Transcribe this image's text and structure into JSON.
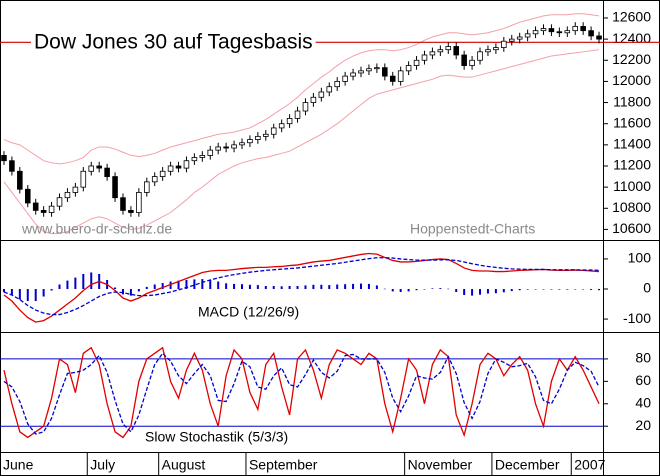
{
  "chart_data": [
    {
      "type": "candlestick",
      "title": "Dow Jones 30 auf Tagesbasis",
      "annotations": [
        "www.buero-dr-schulz.de",
        "Hoppenstedt-Charts"
      ],
      "categories": [
        "June",
        null,
        null,
        null,
        null,
        null,
        null,
        null,
        null,
        null,
        null,
        "July",
        null,
        null,
        null,
        null,
        null,
        null,
        null,
        null,
        "August",
        null,
        null,
        null,
        null,
        null,
        null,
        null,
        null,
        null,
        null,
        "September",
        null,
        null,
        null,
        null,
        null,
        null,
        null,
        null,
        null,
        null,
        null,
        null,
        null,
        null,
        null,
        null,
        null,
        null,
        null,
        "November",
        null,
        null,
        null,
        null,
        null,
        null,
        null,
        null,
        null,
        null,
        "December",
        null,
        null,
        null,
        null,
        null,
        null,
        null,
        null,
        null,
        "2007",
        null,
        null,
        null
      ],
      "open": [
        11300,
        11250,
        11150,
        10980,
        10850,
        10780,
        10760,
        10820,
        10900,
        10950,
        11000,
        11150,
        11200,
        11180,
        11100,
        10900,
        10780,
        10760,
        10950,
        11050,
        11100,
        11150,
        11200,
        11180,
        11250,
        11280,
        11300,
        11350,
        11380,
        11370,
        11400,
        11420,
        11450,
        11480,
        11500,
        11560,
        11600,
        11650,
        11720,
        11800,
        11850,
        11900,
        11950,
        12000,
        12050,
        12080,
        12100,
        12120,
        12130,
        12050,
        12000,
        12100,
        12150,
        12200,
        12250,
        12280,
        12300,
        12330,
        12250,
        12150,
        12200,
        12280,
        12300,
        12320,
        12380,
        12400,
        12420,
        12450,
        12480,
        12500,
        12470,
        12460,
        12480,
        12520,
        12480,
        12430
      ],
      "high": [
        11340,
        11290,
        11190,
        11020,
        10890,
        10820,
        10860,
        10940,
        10990,
        11040,
        11190,
        11240,
        11240,
        11220,
        11140,
        10940,
        10820,
        10990,
        11090,
        11140,
        11190,
        11240,
        11240,
        11290,
        11320,
        11340,
        11390,
        11420,
        11420,
        11440,
        11460,
        11490,
        11520,
        11540,
        11600,
        11640,
        11690,
        11760,
        11840,
        11890,
        11940,
        11990,
        12040,
        12090,
        12120,
        12140,
        12160,
        12170,
        12170,
        12090,
        12140,
        12190,
        12240,
        12290,
        12320,
        12340,
        12370,
        12370,
        12290,
        12240,
        12320,
        12340,
        12360,
        12420,
        12440,
        12460,
        12490,
        12520,
        12540,
        12540,
        12510,
        12520,
        12560,
        12560,
        12520,
        12470
      ],
      "low": [
        11210,
        11110,
        10940,
        10810,
        10740,
        10720,
        10720,
        10780,
        10860,
        10910,
        10960,
        11110,
        11140,
        11060,
        10860,
        10740,
        10720,
        10720,
        10910,
        11010,
        11060,
        11110,
        11140,
        11140,
        11210,
        11240,
        11260,
        11310,
        11330,
        11330,
        11360,
        11380,
        11410,
        11440,
        11460,
        11520,
        11560,
        11610,
        11680,
        11760,
        11810,
        11860,
        11910,
        11960,
        12010,
        12040,
        12060,
        12080,
        12010,
        11960,
        11960,
        12060,
        12110,
        12160,
        12210,
        12240,
        12260,
        12210,
        12110,
        12110,
        12160,
        12240,
        12260,
        12280,
        12340,
        12360,
        12380,
        12410,
        12440,
        12430,
        12420,
        12420,
        12440,
        12440,
        12390,
        12360
      ],
      "close": [
        11250,
        11150,
        10980,
        10850,
        10780,
        10760,
        10820,
        10900,
        10950,
        11000,
        11150,
        11200,
        11180,
        11100,
        10900,
        10780,
        10760,
        10950,
        11050,
        11100,
        11150,
        11200,
        11180,
        11250,
        11280,
        11300,
        11350,
        11380,
        11370,
        11400,
        11420,
        11450,
        11480,
        11500,
        11560,
        11600,
        11650,
        11720,
        11800,
        11850,
        11900,
        11950,
        12000,
        12050,
        12080,
        12100,
        12120,
        12130,
        12050,
        12000,
        12100,
        12150,
        12200,
        12250,
        12280,
        12300,
        12330,
        12250,
        12150,
        12200,
        12280,
        12300,
        12320,
        12380,
        12400,
        12420,
        12450,
        12480,
        12500,
        12470,
        12460,
        12480,
        12520,
        12480,
        12430,
        12400
      ],
      "color": "#000000",
      "bands": {
        "color": "#f4a0a8",
        "upper": [
          11450,
          11420,
          11400,
          11350,
          11300,
          11250,
          11230,
          11220,
          11230,
          11250,
          11280,
          11350,
          11380,
          11380,
          11360,
          11330,
          11300,
          11290,
          11300,
          11320,
          11350,
          11380,
          11400,
          11420,
          11440,
          11460,
          11480,
          11500,
          11510,
          11520,
          11540,
          11560,
          11600,
          11640,
          11690,
          11740,
          11790,
          11850,
          11920,
          11980,
          12040,
          12090,
          12150,
          12200,
          12240,
          12270,
          12290,
          12300,
          12300,
          12290,
          12300,
          12320,
          12350,
          12390,
          12420,
          12440,
          12460,
          12460,
          12450,
          12440,
          12450,
          12460,
          12480,
          12500,
          12530,
          12560,
          12580,
          12600,
          12620,
          12630,
          12630,
          12630,
          12640,
          12640,
          12630,
          12620
        ],
        "lower": [
          11050,
          10950,
          10850,
          10750,
          10650,
          10580,
          10560,
          10560,
          10580,
          10620,
          10660,
          10700,
          10720,
          10700,
          10660,
          10620,
          10600,
          10610,
          10640,
          10680,
          10720,
          10760,
          10820,
          10880,
          10950,
          11000,
          11060,
          11120,
          11160,
          11200,
          11230,
          11250,
          11270,
          11280,
          11300,
          11320,
          11340,
          11380,
          11420,
          11460,
          11500,
          11550,
          11600,
          11660,
          11720,
          11780,
          11840,
          11880,
          11900,
          11920,
          11940,
          11960,
          11980,
          12000,
          12020,
          12050,
          12060,
          12050,
          12040,
          12040,
          12060,
          12080,
          12100,
          12120,
          12140,
          12160,
          12180,
          12200,
          12220,
          12240,
          12250,
          12260,
          12270,
          12280,
          12290,
          12300
        ]
      },
      "hline": {
        "value": 12370,
        "color": "#cc0000"
      },
      "ylim": [
        10500,
        12770
      ],
      "yticks": [
        10600,
        10800,
        11000,
        11200,
        11400,
        11600,
        11800,
        12000,
        12200,
        12400,
        12600
      ]
    },
    {
      "type": "macd",
      "label": "MACD (12/26/9)",
      "series": [
        {
          "style": "bars",
          "color": "#0000cc",
          "values": [
            -10,
            -20,
            -35,
            -40,
            -40,
            -25,
            -5,
            15,
            28,
            38,
            50,
            55,
            50,
            30,
            5,
            -18,
            -22,
            -8,
            7,
            15,
            20,
            25,
            28,
            30,
            32,
            33,
            30,
            25,
            19,
            17,
            16,
            14,
            13,
            10,
            10,
            9,
            10,
            10,
            12,
            14,
            14,
            13,
            15,
            16,
            17,
            18,
            17,
            12,
            1,
            -8,
            -10,
            -8,
            -4,
            -1,
            2,
            3,
            1,
            -10,
            -20,
            -22,
            -19,
            -15,
            -14,
            -11,
            -7,
            -4,
            -2,
            -1,
            0,
            -1,
            -2,
            -2,
            -1,
            -1,
            -3,
            -4
          ]
        },
        {
          "style": "line",
          "color": "#e00000",
          "values": [
            -20,
            -40,
            -70,
            -95,
            -110,
            -105,
            -90,
            -70,
            -50,
            -30,
            -5,
            15,
            25,
            15,
            -5,
            -30,
            -40,
            -30,
            -15,
            -5,
            5,
            15,
            25,
            35,
            45,
            55,
            60,
            62,
            62,
            65,
            68,
            70,
            72,
            72,
            74,
            75,
            78,
            80,
            85,
            90,
            93,
            95,
            100,
            105,
            110,
            115,
            118,
            116,
            105,
            95,
            90,
            90,
            92,
            95,
            98,
            100,
            98,
            85,
            70,
            62,
            60,
            60,
            58,
            58,
            60,
            62,
            63,
            64,
            65,
            63,
            62,
            62,
            63,
            62,
            60,
            58
          ]
        },
        {
          "style": "dashed",
          "color": "#0000cc",
          "values": [
            -10,
            -20,
            -35,
            -55,
            -70,
            -80,
            -85,
            -85,
            -78,
            -68,
            -55,
            -40,
            -25,
            -15,
            -10,
            -12,
            -18,
            -22,
            -22,
            -20,
            -15,
            -10,
            -3,
            5,
            13,
            22,
            30,
            37,
            43,
            48,
            52,
            56,
            59,
            62,
            64,
            66,
            68,
            70,
            73,
            76,
            79,
            82,
            85,
            89,
            93,
            97,
            101,
            104,
            104,
            103,
            100,
            98,
            96,
            96,
            96,
            97,
            97,
            95,
            90,
            84,
            79,
            75,
            72,
            69,
            67,
            66,
            65,
            65,
            65,
            64,
            64,
            64,
            64,
            63,
            63,
            62
          ]
        }
      ],
      "ylim": [
        -143,
        163
      ],
      "yticks": [
        -100,
        0,
        100
      ]
    },
    {
      "type": "stochastic",
      "label": "Slow Stochastik (5/3/3)",
      "series": [
        {
          "style": "line",
          "color": "#e00000",
          "values": [
            70,
            40,
            15,
            10,
            15,
            20,
            45,
            80,
            75,
            50,
            85,
            90,
            75,
            40,
            15,
            10,
            20,
            60,
            80,
            85,
            90,
            60,
            45,
            70,
            85,
            70,
            40,
            20,
            65,
            88,
            80,
            50,
            35,
            75,
            85,
            55,
            30,
            80,
            88,
            70,
            45,
            75,
            88,
            85,
            80,
            75,
            85,
            80,
            40,
            15,
            45,
            80,
            70,
            40,
            75,
            88,
            82,
            30,
            12,
            40,
            75,
            85,
            80,
            65,
            75,
            82,
            70,
            40,
            20,
            60,
            80,
            70,
            82,
            70,
            55,
            40
          ]
        },
        {
          "style": "dashed",
          "color": "#0000cc",
          "values": [
            60,
            55,
            42,
            22,
            13,
            15,
            27,
            48,
            67,
            68,
            70,
            75,
            83,
            68,
            43,
            22,
            15,
            30,
            53,
            75,
            85,
            78,
            65,
            58,
            67,
            75,
            65,
            43,
            42,
            58,
            78,
            73,
            55,
            53,
            65,
            72,
            57,
            55,
            66,
            79,
            68,
            63,
            69,
            83,
            84,
            80,
            80,
            80,
            68,
            45,
            33,
            47,
            65,
            63,
            62,
            68,
            82,
            67,
            41,
            27,
            42,
            67,
            80,
            77,
            73,
            74,
            76,
            64,
            43,
            40,
            53,
            70,
            77,
            74,
            69,
            55
          ]
        }
      ],
      "levels": [
        80,
        20
      ],
      "levels_color": "#0000cc",
      "ylim": [
        -3,
        104
      ],
      "yticks": [
        20,
        40,
        60,
        80
      ]
    }
  ]
}
